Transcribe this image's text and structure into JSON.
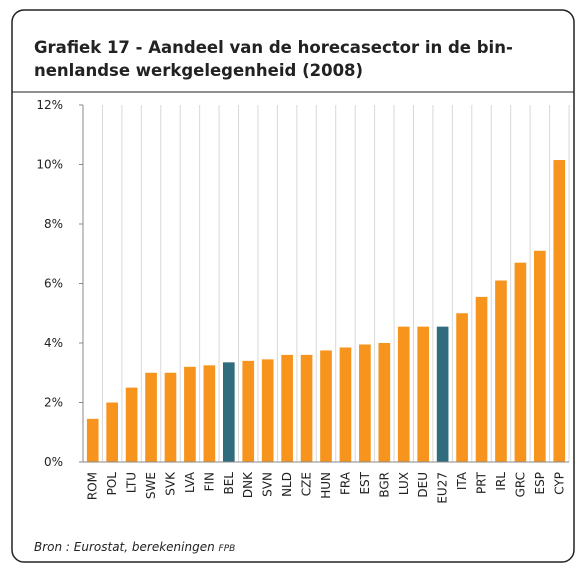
{
  "chart_data": {
    "type": "bar",
    "title": "Grafiek 17 - Aandeel van de horecasector in de bin-",
    "title_line2": "nenlandse werkgelegenheid (2008)",
    "categories": [
      "ROM",
      "POL",
      "LTU",
      "SWE",
      "SVK",
      "LVA",
      "FIN",
      "BEL",
      "DNK",
      "SVN",
      "NLD",
      "CZE",
      "HUN",
      "FRA",
      "EST",
      "BGR",
      "LUX",
      "DEU",
      "EU27",
      "ITA",
      "PRT",
      "IRL",
      "GRC",
      "ESP",
      "CYP"
    ],
    "values": [
      1.45,
      2.0,
      2.5,
      3.0,
      3.0,
      3.2,
      3.25,
      3.35,
      3.4,
      3.45,
      3.6,
      3.6,
      3.75,
      3.85,
      3.95,
      4.0,
      4.55,
      4.55,
      4.55,
      5.0,
      5.55,
      6.1,
      6.7,
      7.1,
      10.15
    ],
    "colors": [
      "#f7941d",
      "#f7941d",
      "#f7941d",
      "#f7941d",
      "#f7941d",
      "#f7941d",
      "#f7941d",
      "#2f6c7d",
      "#f7941d",
      "#f7941d",
      "#f7941d",
      "#f7941d",
      "#f7941d",
      "#f7941d",
      "#f7941d",
      "#f7941d",
      "#f7941d",
      "#f7941d",
      "#2f6c7d",
      "#f7941d",
      "#f7941d",
      "#f7941d",
      "#f7941d",
      "#f7941d",
      "#f7941d"
    ],
    "ylim": [
      0,
      12
    ],
    "yticks": [
      {
        "value": 0,
        "label": "0%"
      },
      {
        "value": 2,
        "label": "2%"
      },
      {
        "value": 4,
        "label": "4%"
      },
      {
        "value": 6,
        "label": "6%"
      },
      {
        "value": 8,
        "label": "8%"
      },
      {
        "value": 10,
        "label": "10%"
      },
      {
        "value": 12,
        "label": "12%"
      }
    ],
    "grid": true,
    "source": "Bron : Eurostat, berekeningen",
    "source_suffix": "FPB"
  }
}
